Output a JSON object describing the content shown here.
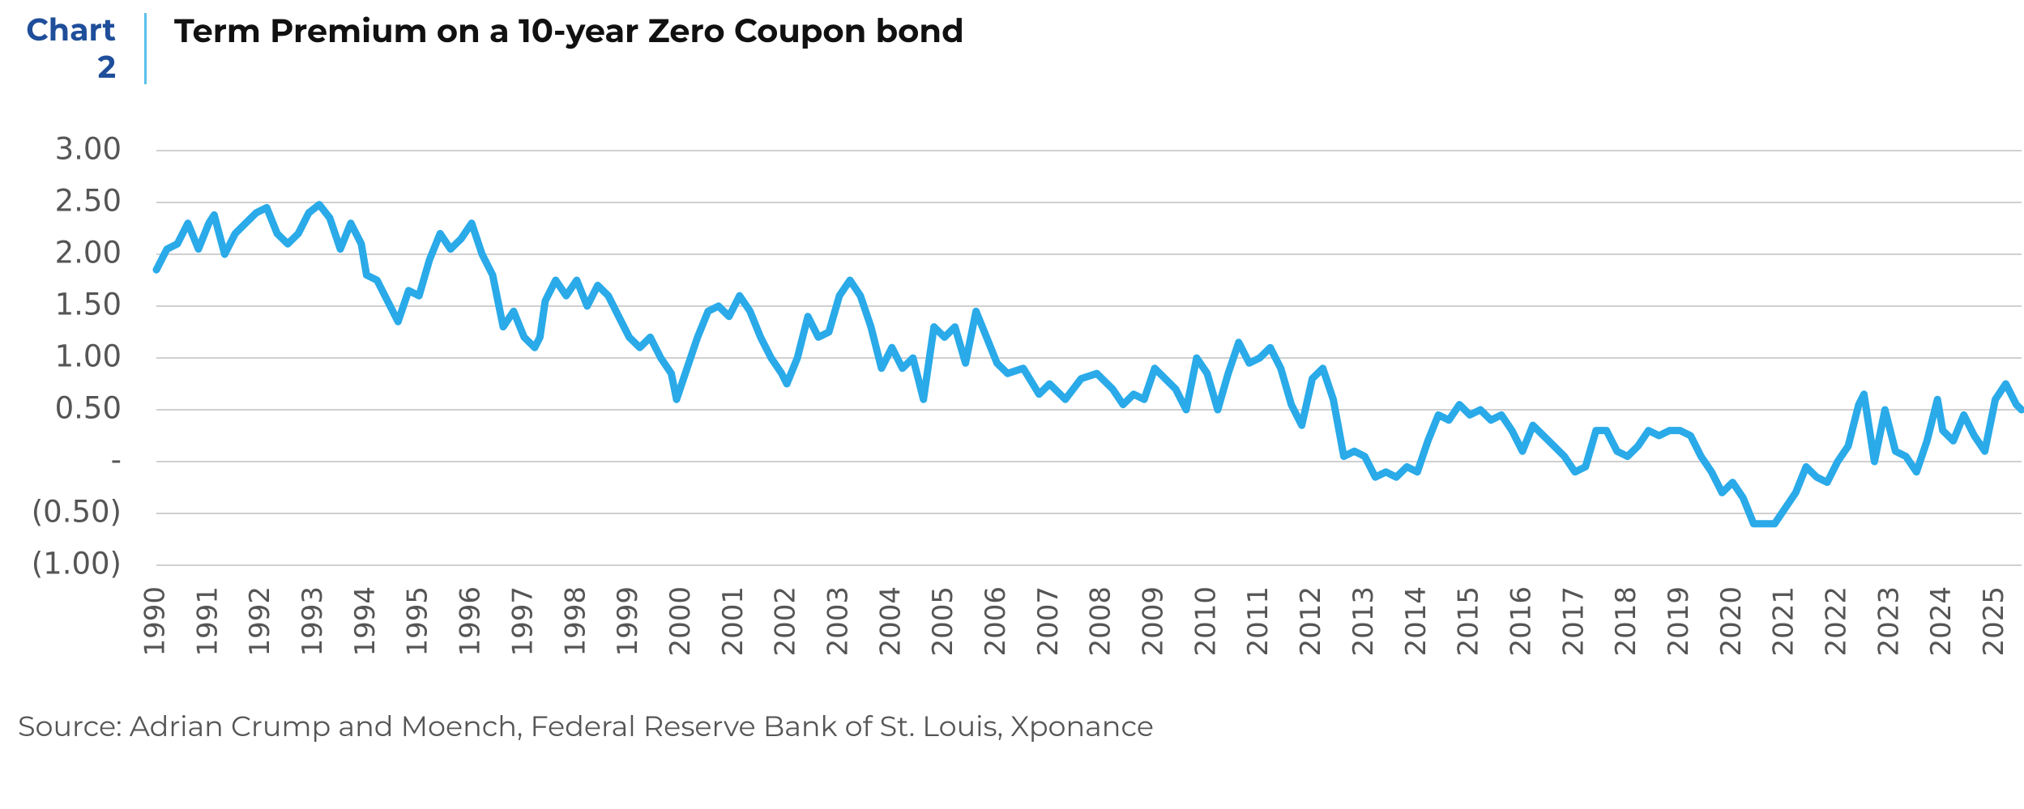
{
  "chart_data": {
    "type": "line",
    "chart_label": "Chart 2",
    "title": "Term Premium on a 10-year Zero Coupon bond",
    "source": "Source: Adrian Crump and Moench, Federal Reserve Bank of St. Louis, Xponance",
    "x": [
      1990.0,
      1990.2,
      1990.4,
      1990.6,
      1990.8,
      1991.0,
      1991.1,
      1991.3,
      1991.5,
      1991.7,
      1991.9,
      1992.1,
      1992.3,
      1992.5,
      1992.7,
      1992.9,
      1993.1,
      1993.3,
      1993.5,
      1993.7,
      1993.9,
      1994.0,
      1994.2,
      1994.4,
      1994.6,
      1994.8,
      1995.0,
      1995.2,
      1995.4,
      1995.6,
      1995.8,
      1996.0,
      1996.2,
      1996.4,
      1996.6,
      1996.8,
      1997.0,
      1997.2,
      1997.3,
      1997.4,
      1997.6,
      1997.8,
      1998.0,
      1998.2,
      1998.4,
      1998.6,
      1998.8,
      1999.0,
      1999.2,
      1999.4,
      1999.6,
      1999.8,
      1999.9,
      2000.1,
      2000.3,
      2000.5,
      2000.7,
      2000.9,
      2001.1,
      2001.3,
      2001.5,
      2001.7,
      2001.9,
      2002.0,
      2002.2,
      2002.4,
      2002.6,
      2002.8,
      2003.0,
      2003.2,
      2003.4,
      2003.6,
      2003.8,
      2004.0,
      2004.2,
      2004.4,
      2004.6,
      2004.8,
      2005.0,
      2005.2,
      2005.4,
      2005.6,
      2005.8,
      2006.0,
      2006.2,
      2006.5,
      2006.8,
      2007.0,
      2007.3,
      2007.6,
      2007.9,
      2008.2,
      2008.4,
      2008.6,
      2008.8,
      2009.0,
      2009.2,
      2009.4,
      2009.6,
      2009.8,
      2010.0,
      2010.2,
      2010.4,
      2010.6,
      2010.8,
      2011.0,
      2011.2,
      2011.4,
      2011.6,
      2011.8,
      2012.0,
      2012.2,
      2012.4,
      2012.6,
      2012.8,
      2013.0,
      2013.2,
      2013.4,
      2013.6,
      2013.8,
      2014.0,
      2014.2,
      2014.4,
      2014.6,
      2014.8,
      2015.0,
      2015.2,
      2015.4,
      2015.6,
      2015.8,
      2016.0,
      2016.2,
      2016.4,
      2016.6,
      2016.8,
      2017.0,
      2017.2,
      2017.4,
      2017.6,
      2017.8,
      2018.0,
      2018.2,
      2018.4,
      2018.6,
      2018.8,
      2019.0,
      2019.2,
      2019.4,
      2019.6,
      2019.8,
      2020.0,
      2020.2,
      2020.4,
      2020.6,
      2020.8,
      2021.0,
      2021.2,
      2021.4,
      2021.6,
      2021.8,
      2022.0,
      2022.2,
      2022.4,
      2022.5,
      2022.7,
      2022.9,
      2023.1,
      2023.3,
      2023.5,
      2023.7,
      2023.9,
      2024.0,
      2024.2,
      2024.4,
      2024.6,
      2024.8,
      2025.0,
      2025.2,
      2025.4,
      2025.5
    ],
    "series": [
      {
        "name": "Term Premium",
        "color": "#2aaae8",
        "values": [
          1.85,
          2.05,
          2.1,
          2.3,
          2.05,
          2.3,
          2.38,
          2.0,
          2.2,
          2.3,
          2.4,
          2.45,
          2.2,
          2.1,
          2.2,
          2.4,
          2.48,
          2.35,
          2.05,
          2.3,
          2.1,
          1.8,
          1.75,
          1.55,
          1.35,
          1.65,
          1.6,
          1.95,
          2.2,
          2.05,
          2.15,
          2.3,
          2.0,
          1.8,
          1.3,
          1.45,
          1.2,
          1.1,
          1.2,
          1.55,
          1.75,
          1.6,
          1.75,
          1.5,
          1.7,
          1.6,
          1.4,
          1.2,
          1.1,
          1.2,
          1.0,
          0.85,
          0.6,
          0.9,
          1.2,
          1.45,
          1.5,
          1.4,
          1.6,
          1.45,
          1.2,
          1.0,
          0.85,
          0.75,
          1.0,
          1.4,
          1.2,
          1.25,
          1.6,
          1.75,
          1.6,
          1.3,
          0.9,
          1.1,
          0.9,
          1.0,
          0.6,
          1.3,
          1.2,
          1.3,
          0.95,
          1.45,
          1.2,
          0.95,
          0.85,
          0.9,
          0.65,
          0.75,
          0.6,
          0.8,
          0.85,
          0.7,
          0.55,
          0.65,
          0.6,
          0.9,
          0.8,
          0.7,
          0.5,
          1.0,
          0.85,
          0.5,
          0.85,
          1.15,
          0.95,
          1.0,
          1.1,
          0.9,
          0.55,
          0.35,
          0.8,
          0.9,
          0.6,
          0.05,
          0.1,
          0.05,
          -0.15,
          -0.1,
          -0.15,
          -0.05,
          -0.1,
          0.2,
          0.45,
          0.4,
          0.55,
          0.45,
          0.5,
          0.4,
          0.45,
          0.3,
          0.1,
          0.35,
          0.25,
          0.15,
          0.05,
          -0.1,
          -0.05,
          0.3,
          0.3,
          0.1,
          0.05,
          0.15,
          0.3,
          0.25,
          0.3,
          0.3,
          0.25,
          0.05,
          -0.1,
          -0.3,
          -0.2,
          -0.35,
          -0.6,
          -0.6,
          -0.6,
          -0.45,
          -0.3,
          -0.05,
          -0.15,
          -0.2,
          0.0,
          0.15,
          0.55,
          0.65,
          0.0,
          0.5,
          0.1,
          0.05,
          -0.1,
          0.2,
          0.6,
          0.3,
          0.2,
          0.45,
          0.25,
          0.1,
          0.6,
          0.75,
          0.55,
          0.5
        ]
      }
    ],
    "xlim": [
      1990,
      2025.5
    ],
    "xticks": [
      1990,
      1991,
      1992,
      1993,
      1994,
      1995,
      1996,
      1997,
      1998,
      1999,
      2000,
      2001,
      2002,
      2003,
      2004,
      2005,
      2006,
      2007,
      2008,
      2009,
      2010,
      2011,
      2012,
      2013,
      2014,
      2015,
      2016,
      2017,
      2018,
      2019,
      2020,
      2021,
      2022,
      2023,
      2024,
      2025
    ],
    "ylim": [
      -1,
      3
    ],
    "yticks": [
      {
        "value": 3,
        "label": "3.00"
      },
      {
        "value": 2.5,
        "label": "2.50"
      },
      {
        "value": 2,
        "label": "2.00"
      },
      {
        "value": 1.5,
        "label": "1.50"
      },
      {
        "value": 1,
        "label": "1.00"
      },
      {
        "value": 0.5,
        "label": "0.50"
      },
      {
        "value": 0,
        "label": "-"
      },
      {
        "value": -0.5,
        "label": "(0.50)"
      },
      {
        "value": -1,
        "label": "(1.00)"
      }
    ],
    "grid": true
  }
}
